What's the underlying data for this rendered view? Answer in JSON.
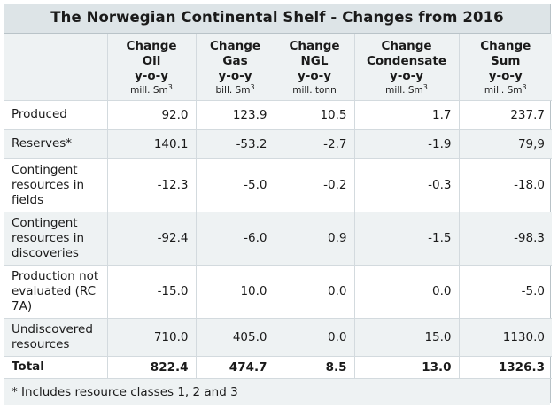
{
  "title": "The Norwegian Continental Shelf - Changes from 2016",
  "columns": [
    {
      "line1": "Change",
      "line2": "Oil",
      "line3": "y-o-y",
      "unit": "mill. Sm",
      "unit_sup": "3"
    },
    {
      "line1": "Change",
      "line2": "Gas",
      "line3": "y-o-y",
      "unit": "bill. Sm",
      "unit_sup": "3"
    },
    {
      "line1": "Change",
      "line2": "NGL",
      "line3": "y-o-y",
      "unit": "mill. tonn",
      "unit_sup": ""
    },
    {
      "line1": "Change",
      "line2": "Condensate",
      "line3": "y-o-y",
      "unit": "mill. Sm",
      "unit_sup": "3"
    },
    {
      "line1": "Change",
      "line2": "Sum",
      "line3": "y-o-y",
      "unit": "mill. Sm",
      "unit_sup": "3"
    }
  ],
  "rows": [
    {
      "label": "Produced",
      "values": [
        "92.0",
        "123.9",
        "10.5",
        "1.7",
        "237.7"
      ]
    },
    {
      "label": "Reserves*",
      "values": [
        "140.1",
        "-53.2",
        "-2.7",
        "-1.9",
        "79,9"
      ]
    },
    {
      "label": "Contingent resources in fields",
      "values": [
        "-12.3",
        "-5.0",
        "-0.2",
        "-0.3",
        "-18.0"
      ]
    },
    {
      "label": "Contingent resources in discoveries",
      "values": [
        "-92.4",
        "-6.0",
        "0.9",
        "-1.5",
        "-98.3"
      ]
    },
    {
      "label": "Production not evaluated (RC 7A)",
      "values": [
        "-15.0",
        "10.0",
        "0.0",
        "0.0",
        "-5.0"
      ]
    },
    {
      "label": "Undiscovered resources",
      "values": [
        "710.0",
        "405.0",
        "0.0",
        "15.0",
        "1130.0"
      ]
    }
  ],
  "total": {
    "label": "Total",
    "values": [
      "822.4",
      "474.7",
      "8.5",
      "13.0",
      "1326.3"
    ]
  },
  "footnote": "* Includes resource classes 1, 2 and 3"
}
